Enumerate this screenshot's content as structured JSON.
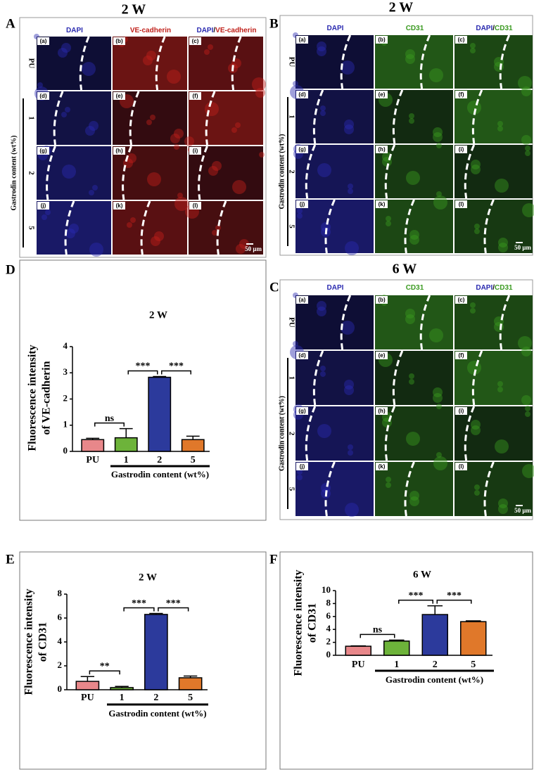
{
  "panels": [
    {
      "letter": "A",
      "title": "2 W",
      "columns": [
        [
          {
            "text": "DAPI",
            "color": "#2a2ab0"
          }
        ],
        [
          {
            "text": "VE-cadherin",
            "color": "#c0201a"
          }
        ],
        [
          {
            "text": "DAPI",
            "color": "#2a2ab0"
          },
          {
            "text": "/",
            "color": "#000000"
          },
          {
            "text": "VE-cadherin",
            "color": "#c0201a"
          }
        ]
      ],
      "rows": [
        "PU",
        "1",
        "2",
        "5"
      ],
      "group_label": "Gastrodin content (wt%)",
      "cell_labels": [
        "(a)",
        "(b)",
        "(c)",
        "(d)",
        "(e)",
        "(f)",
        "(g)",
        "(h)",
        "(i)",
        "(j)",
        "(k)",
        "(l)"
      ],
      "scale_bar": "50 μm"
    },
    {
      "letter": "B",
      "title": "2 W",
      "columns": [
        [
          {
            "text": "DAPI",
            "color": "#2a2ab0"
          }
        ],
        [
          {
            "text": "CD31",
            "color": "#3a9a20"
          }
        ],
        [
          {
            "text": "DAPI",
            "color": "#2a2ab0"
          },
          {
            "text": "/",
            "color": "#000000"
          },
          {
            "text": "CD31",
            "color": "#3a9a20"
          }
        ]
      ],
      "rows": [
        "PU",
        "1",
        "2",
        "5"
      ],
      "group_label": "Gastrodin content (wt%)",
      "cell_labels": [
        "(a)",
        "(b)",
        "(c)",
        "(d)",
        "(e)",
        "(f)",
        "(g)",
        "(h)",
        "(i)",
        "(j)",
        "(k)",
        "(l)"
      ],
      "scale_bar": "50 μm"
    },
    {
      "letter": "C",
      "title": "6 W",
      "columns": [
        [
          {
            "text": "DAPI",
            "color": "#2a2ab0"
          }
        ],
        [
          {
            "text": "CD31",
            "color": "#3a9a20"
          }
        ],
        [
          {
            "text": "DAPI",
            "color": "#2a2ab0"
          },
          {
            "text": "/",
            "color": "#000000"
          },
          {
            "text": "CD31",
            "color": "#3a9a20"
          }
        ]
      ],
      "rows": [
        "PU",
        "1",
        "2",
        "5"
      ],
      "group_label": "Gastrodin content (wt%)",
      "cell_labels": [
        "(a)",
        "(b)",
        "(c)",
        "(d)",
        "(e)",
        "(f)",
        "(g)",
        "(h)",
        "(i)",
        "(j)",
        "(k)",
        "(l)"
      ],
      "scale_bar": "50 μm"
    }
  ],
  "chart_data": [
    {
      "type": "bar",
      "label": "D",
      "title": "2 W",
      "ylabel": [
        "Fluorescence intensity",
        "of VE-cadherin"
      ],
      "xlabel": "Gastrodin content (wt%)",
      "categories": [
        "PU",
        "1",
        "2",
        "5"
      ],
      "values": [
        0.45,
        0.52,
        2.83,
        0.45
      ],
      "errors": [
        0.05,
        0.35,
        0.03,
        0.13
      ],
      "colors": [
        "#e8878a",
        "#6db33a",
        "#2c3a9c",
        "#e0782a"
      ],
      "ylim": [
        0,
        4
      ],
      "yticks": [
        0,
        1,
        2,
        3,
        4
      ],
      "annotations": [
        {
          "text": "ns",
          "between": [
            "PU",
            "1"
          ]
        },
        {
          "text": "***",
          "between": [
            "1",
            "2"
          ]
        },
        {
          "text": "***",
          "between": [
            "2",
            "5"
          ]
        }
      ]
    },
    {
      "type": "bar",
      "label": "E",
      "title": "2 W",
      "ylabel": [
        "Fluorescence intensity",
        "of CD31"
      ],
      "xlabel": "Gastrodin content (wt%)",
      "categories": [
        "PU",
        "1",
        "2",
        "5"
      ],
      "values": [
        0.7,
        0.18,
        6.3,
        1.0
      ],
      "errors": [
        0.4,
        0.1,
        0.08,
        0.15
      ],
      "colors": [
        "#e8878a",
        "#6db33a",
        "#2c3a9c",
        "#e0782a"
      ],
      "ylim": [
        0,
        8
      ],
      "yticks": [
        0,
        2,
        4,
        6,
        8
      ],
      "annotations": [
        {
          "text": "**",
          "between": [
            "PU",
            "1"
          ]
        },
        {
          "text": "***",
          "between": [
            "1",
            "2"
          ]
        },
        {
          "text": "***",
          "between": [
            "2",
            "5"
          ]
        }
      ]
    },
    {
      "type": "bar",
      "label": "F",
      "title": "6 W",
      "ylabel": [
        "Fluorescence intensity",
        "of CD31"
      ],
      "xlabel": "Gastrodin content (wt%)",
      "categories": [
        "PU",
        "1",
        "2",
        "5"
      ],
      "values": [
        1.4,
        2.2,
        6.3,
        5.2
      ],
      "errors": [
        0.05,
        0.15,
        1.35,
        0.12
      ],
      "colors": [
        "#e8878a",
        "#6db33a",
        "#2c3a9c",
        "#e0782a"
      ],
      "ylim": [
        0,
        10
      ],
      "yticks": [
        0,
        2,
        4,
        6,
        8,
        10
      ],
      "annotations": [
        {
          "text": "ns",
          "between": [
            "PU",
            "1"
          ]
        },
        {
          "text": "***",
          "between": [
            "1",
            "2"
          ]
        },
        {
          "text": "***",
          "between": [
            "2",
            "5"
          ]
        }
      ]
    }
  ]
}
